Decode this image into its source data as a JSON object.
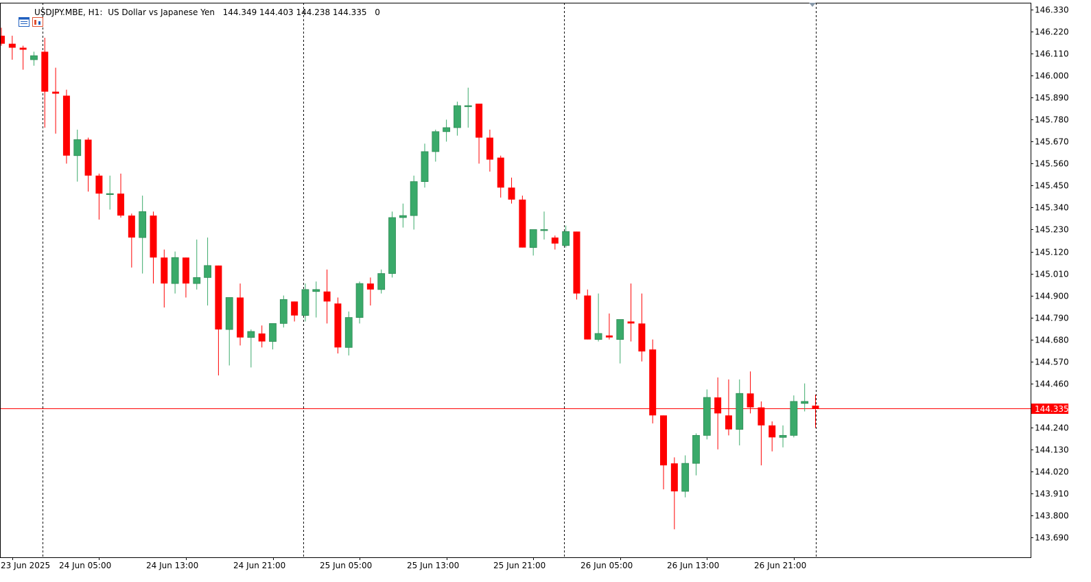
{
  "header": {
    "symbol": "USDJPY.MBE, H1:",
    "description": "US Dollar vs Japanese Yen",
    "ohlc": "144.349 144.403 144.238 144.335",
    "extra": "0",
    "icons": [
      "list-window-icon",
      "chart-window-icon"
    ]
  },
  "colors": {
    "bull": "#3aaa6a",
    "bear": "#ff0000",
    "current_price_line": "#ff0000",
    "grid": "#000000",
    "axis_text": "#000000"
  },
  "chart_data": {
    "type": "candlestick",
    "symbol": "USDJPY.MBE",
    "timeframe": "H1",
    "y_ticks": [
      "146.330",
      "146.220",
      "146.110",
      "146.000",
      "145.890",
      "145.780",
      "145.670",
      "145.560",
      "145.450",
      "145.340",
      "145.230",
      "145.120",
      "145.010",
      "144.900",
      "144.790",
      "144.680",
      "144.570",
      "144.460",
      "144.240",
      "144.130",
      "144.020",
      "143.910",
      "143.800",
      "143.690"
    ],
    "ylim": [
      143.59,
      146.365
    ],
    "x_labels": [
      "23 Jun 2025",
      "24 Jun 05:00",
      "24 Jun 13:00",
      "24 Jun 21:00",
      "25 Jun 05:00",
      "25 Jun 13:00",
      "25 Jun 21:00",
      "26 Jun 05:00",
      "26 Jun 13:00",
      "26 Jun 21:00"
    ],
    "current_price": "144.335",
    "current_price_value": 144.335,
    "candles": [
      {
        "t": "23 Jun 20:00",
        "o": 146.2,
        "h": 146.24,
        "l": 146.15,
        "c": 146.16
      },
      {
        "t": "23 Jun 21:00",
        "o": 146.16,
        "h": 146.2,
        "l": 146.08,
        "c": 146.14
      },
      {
        "t": "23 Jun 22:00",
        "o": 146.14,
        "h": 146.15,
        "l": 146.03,
        "c": 146.13
      },
      {
        "t": "23 Jun 23:00",
        "o": 146.08,
        "h": 146.12,
        "l": 146.05,
        "c": 146.1
      },
      {
        "t": "24 Jun 00:00",
        "o": 146.12,
        "h": 146.19,
        "l": 145.74,
        "c": 145.92
      },
      {
        "t": "24 Jun 01:00",
        "o": 145.92,
        "h": 146.04,
        "l": 145.71,
        "c": 145.91
      },
      {
        "t": "24 Jun 02:00",
        "o": 145.9,
        "h": 145.93,
        "l": 145.56,
        "c": 145.6
      },
      {
        "t": "24 Jun 03:00",
        "o": 145.6,
        "h": 145.73,
        "l": 145.47,
        "c": 145.68
      },
      {
        "t": "24 Jun 04:00",
        "o": 145.68,
        "h": 145.69,
        "l": 145.42,
        "c": 145.5
      },
      {
        "t": "24 Jun 05:00",
        "o": 145.5,
        "h": 145.51,
        "l": 145.28,
        "c": 145.41
      },
      {
        "t": "24 Jun 06:00",
        "o": 145.41,
        "h": 145.5,
        "l": 145.33,
        "c": 145.41
      },
      {
        "t": "24 Jun 07:00",
        "o": 145.41,
        "h": 145.51,
        "l": 145.29,
        "c": 145.3
      },
      {
        "t": "24 Jun 08:00",
        "o": 145.3,
        "h": 145.31,
        "l": 145.04,
        "c": 145.19
      },
      {
        "t": "24 Jun 09:00",
        "o": 145.19,
        "h": 145.4,
        "l": 145.01,
        "c": 145.32
      },
      {
        "t": "24 Jun 10:00",
        "o": 145.3,
        "h": 145.32,
        "l": 144.96,
        "c": 145.09
      },
      {
        "t": "24 Jun 11:00",
        "o": 145.09,
        "h": 145.13,
        "l": 144.84,
        "c": 144.96
      },
      {
        "t": "24 Jun 12:00",
        "o": 144.96,
        "h": 145.12,
        "l": 144.91,
        "c": 145.09
      },
      {
        "t": "24 Jun 13:00",
        "o": 145.09,
        "h": 145.09,
        "l": 144.89,
        "c": 144.96
      },
      {
        "t": "24 Jun 14:00",
        "o": 144.96,
        "h": 145.18,
        "l": 144.93,
        "c": 144.99
      },
      {
        "t": "24 Jun 15:00",
        "o": 144.99,
        "h": 145.19,
        "l": 144.85,
        "c": 145.05
      },
      {
        "t": "24 Jun 16:00",
        "o": 145.05,
        "h": 145.05,
        "l": 144.5,
        "c": 144.73
      },
      {
        "t": "24 Jun 17:00",
        "o": 144.73,
        "h": 144.89,
        "l": 144.55,
        "c": 144.89
      },
      {
        "t": "24 Jun 18:00",
        "o": 144.89,
        "h": 144.96,
        "l": 144.65,
        "c": 144.69
      },
      {
        "t": "24 Jun 19:00",
        "o": 144.69,
        "h": 144.73,
        "l": 144.54,
        "c": 144.72
      },
      {
        "t": "24 Jun 20:00",
        "o": 144.71,
        "h": 144.75,
        "l": 144.64,
        "c": 144.67
      },
      {
        "t": "24 Jun 21:00",
        "o": 144.67,
        "h": 144.76,
        "l": 144.63,
        "c": 144.76
      },
      {
        "t": "24 Jun 22:00",
        "o": 144.76,
        "h": 144.9,
        "l": 144.74,
        "c": 144.88
      },
      {
        "t": "24 Jun 23:00",
        "o": 144.87,
        "h": 144.87,
        "l": 144.77,
        "c": 144.8
      },
      {
        "t": "25 Jun 00:00",
        "o": 144.8,
        "h": 144.96,
        "l": 144.77,
        "c": 144.93
      },
      {
        "t": "25 Jun 01:00",
        "o": 144.92,
        "h": 144.97,
        "l": 144.79,
        "c": 144.93
      },
      {
        "t": "25 Jun 02:00",
        "o": 144.92,
        "h": 145.03,
        "l": 144.76,
        "c": 144.87
      },
      {
        "t": "25 Jun 03:00",
        "o": 144.86,
        "h": 144.89,
        "l": 144.61,
        "c": 144.64
      },
      {
        "t": "25 Jun 04:00",
        "o": 144.64,
        "h": 144.82,
        "l": 144.6,
        "c": 144.79
      },
      {
        "t": "25 Jun 05:00",
        "o": 144.79,
        "h": 144.97,
        "l": 144.76,
        "c": 144.96
      },
      {
        "t": "25 Jun 06:00",
        "o": 144.96,
        "h": 144.99,
        "l": 144.85,
        "c": 144.93
      },
      {
        "t": "25 Jun 07:00",
        "o": 144.93,
        "h": 145.03,
        "l": 144.91,
        "c": 145.01
      },
      {
        "t": "25 Jun 08:00",
        "o": 145.01,
        "h": 145.32,
        "l": 144.99,
        "c": 145.29
      },
      {
        "t": "25 Jun 09:00",
        "o": 145.29,
        "h": 145.36,
        "l": 145.24,
        "c": 145.3
      },
      {
        "t": "25 Jun 10:00",
        "o": 145.3,
        "h": 145.5,
        "l": 145.23,
        "c": 145.47
      },
      {
        "t": "25 Jun 11:00",
        "o": 145.47,
        "h": 145.66,
        "l": 145.44,
        "c": 145.62
      },
      {
        "t": "25 Jun 12:00",
        "o": 145.62,
        "h": 145.73,
        "l": 145.57,
        "c": 145.72
      },
      {
        "t": "25 Jun 13:00",
        "o": 145.72,
        "h": 145.78,
        "l": 145.67,
        "c": 145.74
      },
      {
        "t": "25 Jun 14:00",
        "o": 145.74,
        "h": 145.87,
        "l": 145.7,
        "c": 145.85
      },
      {
        "t": "25 Jun 15:00",
        "o": 145.85,
        "h": 145.94,
        "l": 145.74,
        "c": 145.85
      },
      {
        "t": "25 Jun 16:00",
        "o": 145.86,
        "h": 145.86,
        "l": 145.56,
        "c": 145.69
      },
      {
        "t": "25 Jun 17:00",
        "o": 145.69,
        "h": 145.73,
        "l": 145.52,
        "c": 145.58
      },
      {
        "t": "25 Jun 18:00",
        "o": 145.59,
        "h": 145.6,
        "l": 145.39,
        "c": 145.44
      },
      {
        "t": "25 Jun 19:00",
        "o": 145.44,
        "h": 145.49,
        "l": 145.36,
        "c": 145.38
      },
      {
        "t": "25 Jun 20:00",
        "o": 145.38,
        "h": 145.4,
        "l": 145.14,
        "c": 145.14
      },
      {
        "t": "25 Jun 21:00",
        "o": 145.14,
        "h": 145.23,
        "l": 145.1,
        "c": 145.23
      },
      {
        "t": "25 Jun 22:00",
        "o": 145.23,
        "h": 145.32,
        "l": 145.18,
        "c": 145.23
      },
      {
        "t": "25 Jun 23:00",
        "o": 145.19,
        "h": 145.2,
        "l": 145.13,
        "c": 145.16
      },
      {
        "t": "26 Jun 00:00",
        "o": 145.15,
        "h": 145.25,
        "l": 145.14,
        "c": 145.22
      },
      {
        "t": "26 Jun 01:00",
        "o": 145.22,
        "h": 145.22,
        "l": 144.88,
        "c": 144.91
      },
      {
        "t": "26 Jun 02:00",
        "o": 144.9,
        "h": 144.93,
        "l": 144.68,
        "c": 144.68
      },
      {
        "t": "26 Jun 03:00",
        "o": 144.68,
        "h": 144.91,
        "l": 144.67,
        "c": 144.71
      },
      {
        "t": "26 Jun 04:00",
        "o": 144.7,
        "h": 144.81,
        "l": 144.68,
        "c": 144.69
      },
      {
        "t": "26 Jun 05:00",
        "o": 144.68,
        "h": 144.78,
        "l": 144.56,
        "c": 144.78
      },
      {
        "t": "26 Jun 06:00",
        "o": 144.77,
        "h": 144.96,
        "l": 144.67,
        "c": 144.76
      },
      {
        "t": "26 Jun 07:00",
        "o": 144.76,
        "h": 144.91,
        "l": 144.57,
        "c": 144.62
      },
      {
        "t": "26 Jun 08:00",
        "o": 144.63,
        "h": 144.68,
        "l": 144.26,
        "c": 144.3
      },
      {
        "t": "26 Jun 09:00",
        "o": 144.3,
        "h": 144.3,
        "l": 143.93,
        "c": 144.05
      },
      {
        "t": "26 Jun 10:00",
        "o": 144.06,
        "h": 144.09,
        "l": 143.73,
        "c": 143.92
      },
      {
        "t": "26 Jun 11:00",
        "o": 143.92,
        "h": 144.1,
        "l": 143.89,
        "c": 144.06
      },
      {
        "t": "26 Jun 12:00",
        "o": 144.06,
        "h": 144.21,
        "l": 144.0,
        "c": 144.2
      },
      {
        "t": "26 Jun 13:00",
        "o": 144.2,
        "h": 144.43,
        "l": 144.18,
        "c": 144.39
      },
      {
        "t": "26 Jun 14:00",
        "o": 144.39,
        "h": 144.49,
        "l": 144.13,
        "c": 144.31
      },
      {
        "t": "26 Jun 15:00",
        "o": 144.3,
        "h": 144.48,
        "l": 144.2,
        "c": 144.23
      },
      {
        "t": "26 Jun 16:00",
        "o": 144.23,
        "h": 144.48,
        "l": 144.15,
        "c": 144.41
      },
      {
        "t": "26 Jun 17:00",
        "o": 144.41,
        "h": 144.52,
        "l": 144.31,
        "c": 144.34
      },
      {
        "t": "26 Jun 18:00",
        "o": 144.34,
        "h": 144.37,
        "l": 144.05,
        "c": 144.25
      },
      {
        "t": "26 Jun 19:00",
        "o": 144.25,
        "h": 144.27,
        "l": 144.12,
        "c": 144.19
      },
      {
        "t": "26 Jun 20:00",
        "o": 144.19,
        "h": 144.25,
        "l": 144.14,
        "c": 144.2
      },
      {
        "t": "26 Jun 21:00",
        "o": 144.2,
        "h": 144.4,
        "l": 144.19,
        "c": 144.37
      },
      {
        "t": "26 Jun 22:00",
        "o": 144.36,
        "h": 144.46,
        "l": 144.32,
        "c": 144.37
      },
      {
        "t": "26 Jun 23:00",
        "o": 144.349,
        "h": 144.403,
        "l": 144.238,
        "c": 144.335
      }
    ]
  }
}
